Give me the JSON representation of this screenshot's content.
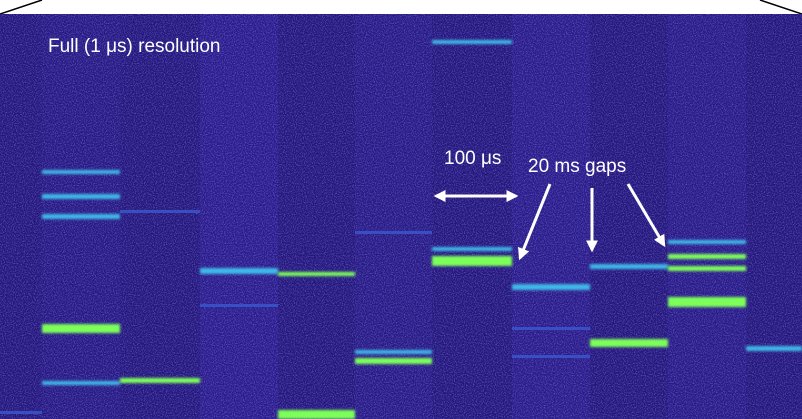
{
  "annotations": {
    "resolution": "Full (1 μs) resolution",
    "interval": "100 μs",
    "gaps": "20 ms gaps"
  }
}
